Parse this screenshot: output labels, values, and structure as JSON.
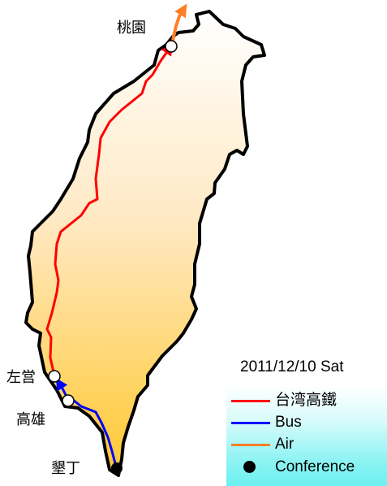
{
  "map": {
    "places": [
      {
        "id": "taoyuan",
        "label": "桃園"
      },
      {
        "id": "zuoying",
        "label": "左営"
      },
      {
        "id": "kaohsiung",
        "label": "高雄"
      },
      {
        "id": "kenting",
        "label": "墾丁"
      }
    ]
  },
  "date_label": "2011/12/10 Sat",
  "legend": {
    "items": [
      {
        "label": "台湾高鐵",
        "color": "#ff0000",
        "marker": "line"
      },
      {
        "label": "Bus",
        "color": "#0000ff",
        "marker": "line"
      },
      {
        "label": "Air",
        "color": "#ff7f27",
        "marker": "line"
      },
      {
        "label": "Conference",
        "color": "#000000",
        "marker": "dot"
      }
    ]
  },
  "colors": {
    "island_top": "#ffffff",
    "island_bottom": "#ffc830",
    "coastline": "#000000",
    "hsr": "#ff0000",
    "bus": "#0000ff",
    "air": "#ff7f27"
  }
}
